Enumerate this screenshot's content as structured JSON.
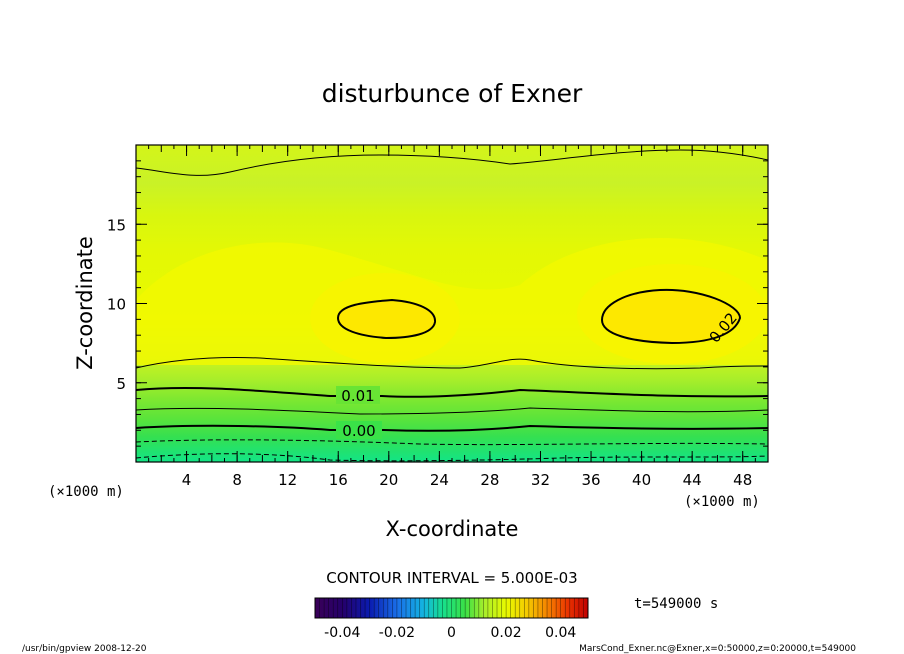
{
  "chart_data": {
    "type": "heatmap",
    "title": "disturbunce of Exner",
    "xlabel": "X-coordinate",
    "ylabel": "Z-coordinate",
    "x_unit": "(×1000 m)",
    "z_unit": "(×1000 m)",
    "xlim": [
      0,
      50
    ],
    "ylim": [
      0,
      20
    ],
    "x_ticks": [
      "4",
      "8",
      "12",
      "16",
      "20",
      "24",
      "28",
      "32",
      "36",
      "40",
      "44",
      "48"
    ],
    "y_ticks": [
      "5",
      "10",
      "15"
    ],
    "contour_interval_text": "CONTOUR INTERVAL = 5.000E-03",
    "contour_labels": [
      "0.02",
      "0.01",
      "0.00"
    ],
    "colorbar": {
      "tick_labels": [
        "-0.04",
        "-0.02",
        "0",
        "0.02",
        "0.04"
      ],
      "range": [
        -0.05,
        0.05
      ]
    },
    "time_label": "t=549000 s",
    "field_max_approx": 0.022,
    "field_min_approx": -0.008
  },
  "footer": {
    "left": "/usr/bin/gpview   2008-12-20",
    "right": "MarsCond_Exner.nc@Exner,x=0:50000,z=0:20000,t=549000"
  }
}
